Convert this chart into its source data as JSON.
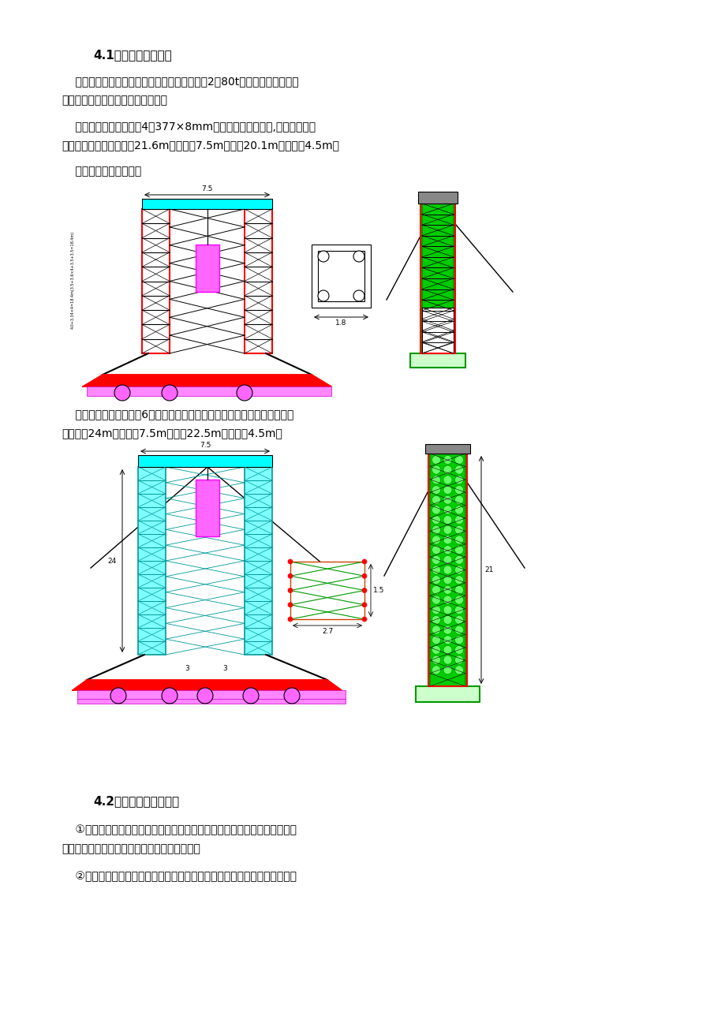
{
  "bg_color": "#ffffff",
  "page_width": 9.2,
  "page_height": 13.02,
  "text_color": "#000000",
  "title1": "4.1门式吊机结构布置",
  "para1_line1": "    采用两台门式吊机进行中间节段钢管拱吊装，2台80t门吊属于自制设备，",
  "para1_line2": "钢管拱中间大节拱肋采用门架提升。",
  "para2_line1": "    北寨山桥门架立柱采用4根377×8mm钢管组成格构式立柱,横梁采用四片",
  "para2_line2": "贝雷梁组成。门架总高度21.6m，总跨度7.5m，净高20.1m，净跨度4.5m。",
  "para3": "    门式支架结构布置为：",
  "para4_line1": "    南寨山桥门架立柱采用6片贝雷梁拼装，横梁采用四片贝雷梁组成。门架总",
  "para4_line2": "高度最大24m，总跨度7.5m，净高22.5m，净跨度4.5m。",
  "title2": "4.2门架拼装及纵移就位",
  "para5_line1": "    ①在西岸主墩附近临时拱座位置拼装门架立柱，立柱底部铺设轨道，轨道放",
  "para5_line2": "置平车，纵横向各一台平车，安装立柱标准节。",
  "para6_line1": "    ②立柱每拼装一标准节，调整立柱的垂直度，并将连接面垫实，然后进行螺"
}
